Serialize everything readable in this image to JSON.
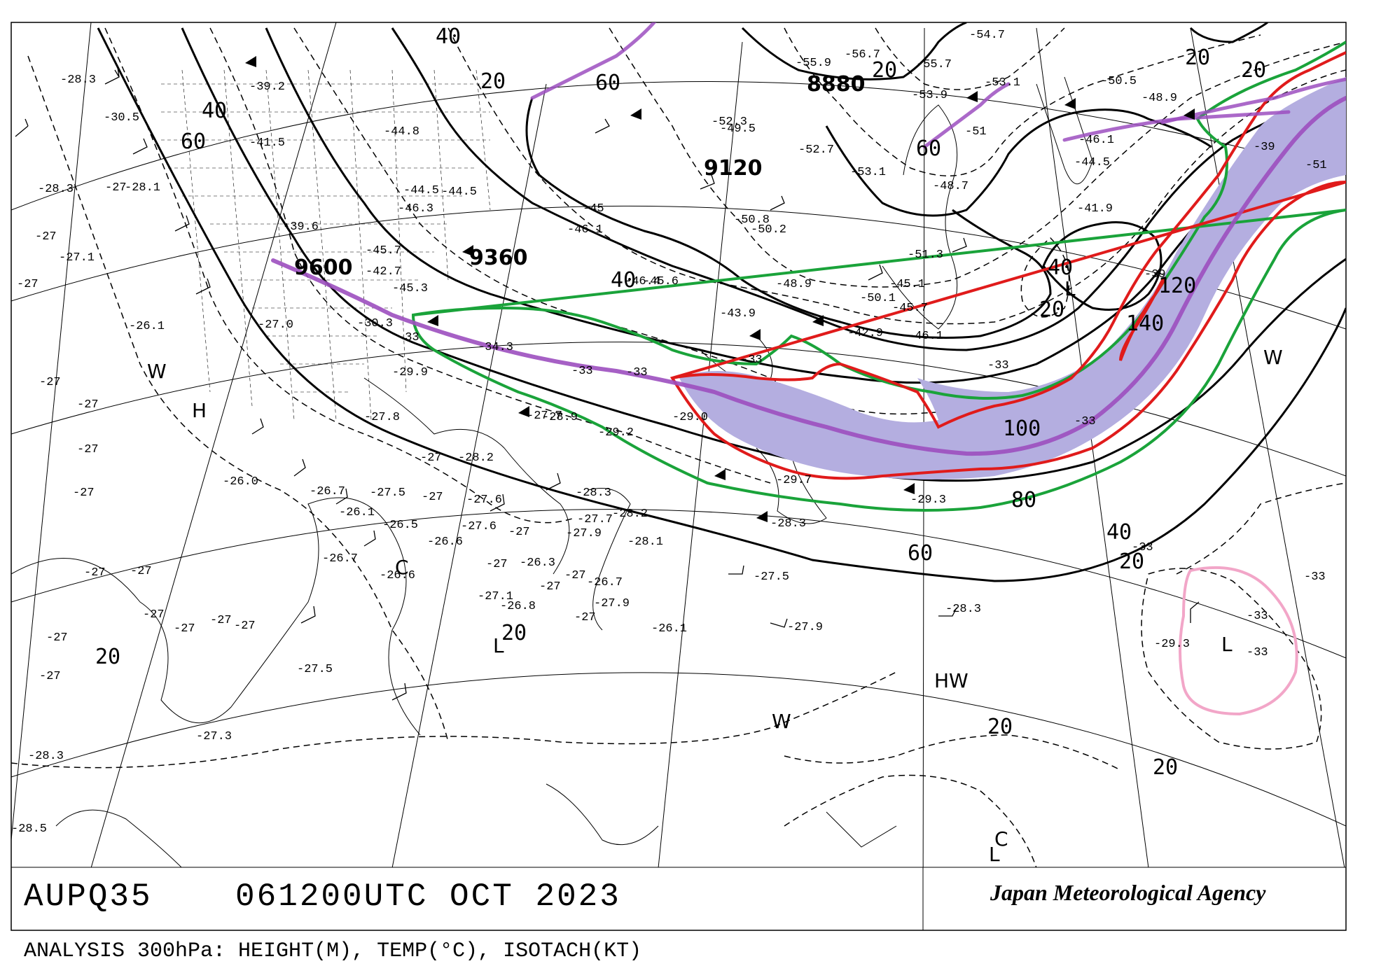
{
  "chart": {
    "id": "AUPQ35",
    "time": "061200UTC OCT 2023",
    "agency": "Japan Meteorological Agency",
    "description": "ANALYSIS 300hPa: HEIGHT(M), TEMP(°C), ISOTACH(KT)"
  },
  "colors": {
    "jet_fill": "#b4aee0",
    "jet_axis": "#9c4fbf",
    "isotach_80": "#1aa33a",
    "isotach_100": "#e01b1b",
    "low_circle": "#f2a6c8"
  },
  "height_labels": [
    {
      "id": "hgt-8880",
      "text": "8880"
    },
    {
      "id": "hgt-9120",
      "text": "9120"
    },
    {
      "id": "hgt-9360",
      "text": "9360"
    },
    {
      "id": "hgt-9600",
      "text": "9600"
    }
  ],
  "isotach_labels": [
    {
      "id": "iso-40-a",
      "text": "40"
    },
    {
      "id": "iso-60-a",
      "text": "60"
    },
    {
      "id": "iso-40-b",
      "text": "40"
    },
    {
      "id": "iso-20-a",
      "text": "20"
    },
    {
      "id": "iso-60-b",
      "text": "60"
    },
    {
      "id": "iso-20-b",
      "text": "20"
    },
    {
      "id": "iso-60-c",
      "text": "60"
    },
    {
      "id": "iso-20-c",
      "text": "20"
    },
    {
      "id": "iso-40-c",
      "text": "40"
    },
    {
      "id": "iso-20-d",
      "text": "20"
    },
    {
      "id": "iso-120",
      "text": "120"
    },
    {
      "id": "iso-140",
      "text": "140"
    },
    {
      "id": "iso-100",
      "text": "100"
    },
    {
      "id": "iso-80",
      "text": "80"
    },
    {
      "id": "iso-40-d",
      "text": "40"
    },
    {
      "id": "iso-20-e",
      "text": "20"
    },
    {
      "id": "iso-60-d",
      "text": "60"
    },
    {
      "id": "iso-20-f",
      "text": "20"
    },
    {
      "id": "iso-20-g",
      "text": "20"
    },
    {
      "id": "iso-20-h",
      "text": "20"
    },
    {
      "id": "iso-20-i",
      "text": "20"
    },
    {
      "id": "iso-20-j",
      "text": "20"
    },
    {
      "id": "iso-40-e",
      "text": "40"
    }
  ],
  "systems": [
    {
      "id": "sys-h",
      "text": "H"
    },
    {
      "id": "sys-w-west",
      "text": "W"
    },
    {
      "id": "sys-c-west",
      "text": "C"
    },
    {
      "id": "sys-l-south",
      "text": "L"
    },
    {
      "id": "sys-l-north",
      "text": "L"
    },
    {
      "id": "sys-w-east",
      "text": "W"
    },
    {
      "id": "sys-hw",
      "text": "HW"
    },
    {
      "id": "sys-w-south",
      "text": "W"
    },
    {
      "id": "sys-l-east",
      "text": "L"
    },
    {
      "id": "sys-l-se",
      "text": "L"
    },
    {
      "id": "sys-c-se",
      "text": "C"
    }
  ],
  "temperature_labels": [
    "-28.3",
    "-28.3",
    "-30.5",
    "-28.1",
    "-27",
    "-27.1",
    "-27",
    "-26.1",
    "-27",
    "-27",
    "-27",
    "-27",
    "-27",
    "-27",
    "-27",
    "-27",
    "-27",
    "-27",
    "-27",
    "-27",
    "-27",
    "-26.7",
    "-27.5",
    "-27.3",
    "-28.3",
    "-28.5",
    "-26.7",
    "-27.5",
    "-26.1",
    "-26.5",
    "-26.6",
    "-26.0",
    "-27.8",
    "-27",
    "-27",
    "-26.6",
    "-26.3",
    "-27.6",
    "-27.6",
    "-27",
    "-27",
    "-27",
    "-28.3",
    "-28.2",
    "-28.1",
    "-27.7",
    "-27.9",
    "-26.8",
    "-27.1",
    "-26.1",
    "-26.7",
    "-27.9",
    "-27",
    "-27",
    "-27.5",
    "-27.9",
    "-28.3",
    "-29.7",
    "-28.3",
    "-29.3",
    "-29.0",
    "-29.2",
    "-28.9",
    "-28.2",
    "-27.7",
    "-29.9",
    "-30.3",
    "-27.0",
    "-33",
    "-33",
    "-33",
    "-34.3",
    "-33",
    "-39.2",
    "-41.5",
    "-39.6",
    "-42.7",
    "-45.3",
    "-44.5",
    "-45.7",
    "-46.3",
    "-44.8",
    "-44.5",
    "-45",
    "-46.1",
    "-46.4",
    "-43.9",
    "-45.6",
    "-42.9",
    "-45.1",
    "-45.7",
    "-46.1",
    "-48.7",
    "-51.3",
    "-50.1",
    "-53.1",
    "-52.3",
    "-49.5",
    "-52.7",
    "-50.8",
    "-50.2",
    "-48.9",
    "-55.9",
    "-56.7",
    "-55.7",
    "-54.7",
    "-53.9",
    "-53.1",
    "-51",
    "-50.5",
    "-48.9",
    "-46.1",
    "-44.5",
    "-41.9",
    "-39",
    "-33",
    "-33",
    "-33",
    "-33",
    "-33",
    "-29.3",
    "-33",
    "-39",
    "-51"
  ]
}
